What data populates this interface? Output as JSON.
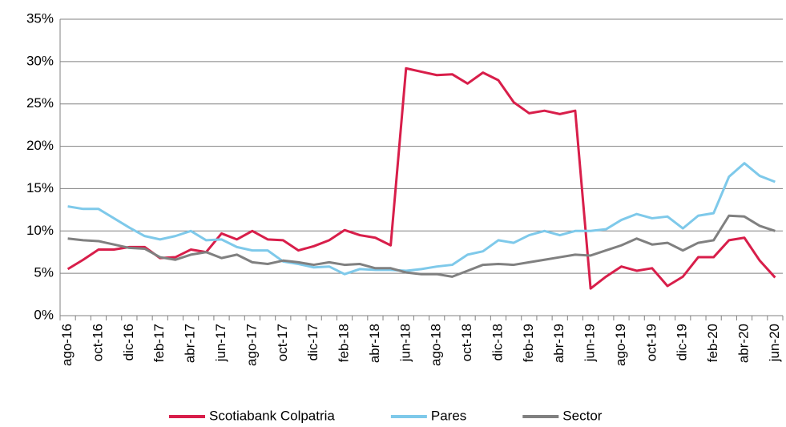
{
  "chart_data": {
    "type": "line",
    "categories": [
      "ago-16",
      null,
      "oct-16",
      null,
      "dic-16",
      null,
      "feb-17",
      null,
      "abr-17",
      null,
      "jun-17",
      null,
      "ago-17",
      null,
      "oct-17",
      null,
      "dic-17",
      null,
      "feb-18",
      null,
      "abr-18",
      null,
      "jun-18",
      null,
      "ago-18",
      null,
      "oct-18",
      null,
      "dic-18",
      null,
      "feb-19",
      null,
      "abr-19",
      null,
      "jun-19",
      null,
      "ago-19",
      null,
      "oct-19",
      null,
      "dic-19",
      null,
      "feb-20",
      null,
      "abr-20",
      null,
      "jun-20"
    ],
    "series": [
      {
        "name": "Scotiabank Colpatria",
        "color": "#d81e4a",
        "values": [
          5.5,
          6.6,
          7.8,
          7.8,
          8.1,
          8.1,
          6.8,
          6.9,
          7.8,
          7.5,
          9.7,
          9.0,
          10.0,
          9.0,
          8.9,
          7.7,
          8.2,
          8.9,
          10.1,
          9.5,
          9.2,
          8.3,
          29.2,
          28.8,
          28.4,
          28.5,
          27.4,
          28.7,
          27.8,
          25.2,
          23.9,
          24.2,
          23.8,
          24.2,
          3.2,
          4.6,
          5.8,
          5.3,
          5.6,
          3.5,
          4.6,
          6.9,
          6.9,
          8.9,
          9.2,
          6.5,
          4.5
        ]
      },
      {
        "name": "Pares",
        "color": "#7ec9ea",
        "values": [
          12.9,
          12.6,
          12.6,
          11.5,
          10.4,
          9.4,
          9.0,
          9.4,
          10.0,
          8.9,
          9.0,
          8.1,
          7.7,
          7.7,
          6.4,
          6.1,
          5.7,
          5.8,
          4.9,
          5.5,
          5.4,
          5.4,
          5.3,
          5.5,
          5.8,
          6.0,
          7.2,
          7.6,
          8.9,
          8.6,
          9.5,
          10.0,
          9.5,
          10.0,
          10.0,
          10.2,
          11.3,
          12.0,
          11.5,
          11.7,
          10.3,
          11.8,
          12.1,
          16.4,
          18.0,
          16.5,
          15.8
        ]
      },
      {
        "name": "Sector",
        "color": "#808080",
        "values": [
          9.1,
          8.9,
          8.8,
          8.4,
          8.0,
          7.9,
          6.9,
          6.6,
          7.2,
          7.5,
          6.8,
          7.2,
          6.3,
          6.1,
          6.5,
          6.3,
          6.0,
          6.3,
          6.0,
          6.1,
          5.6,
          5.6,
          5.1,
          4.9,
          4.9,
          4.6,
          5.3,
          6.0,
          6.1,
          6.0,
          6.3,
          6.6,
          6.9,
          7.2,
          7.1,
          7.7,
          8.3,
          9.1,
          8.4,
          8.6,
          7.7,
          8.6,
          8.9,
          11.8,
          11.7,
          10.6,
          10.0
        ]
      }
    ],
    "ylim": [
      0,
      35
    ],
    "yticks": [
      {
        "value": 0,
        "label": "0%"
      },
      {
        "value": 5,
        "label": "5%"
      },
      {
        "value": 10,
        "label": "10%"
      },
      {
        "value": 15,
        "label": "15%"
      },
      {
        "value": 20,
        "label": "20%"
      },
      {
        "value": 25,
        "label": "25%"
      },
      {
        "value": 30,
        "label": "30%"
      },
      {
        "value": 35,
        "label": "35%"
      }
    ],
    "grid": true,
    "legend": "bottom"
  }
}
